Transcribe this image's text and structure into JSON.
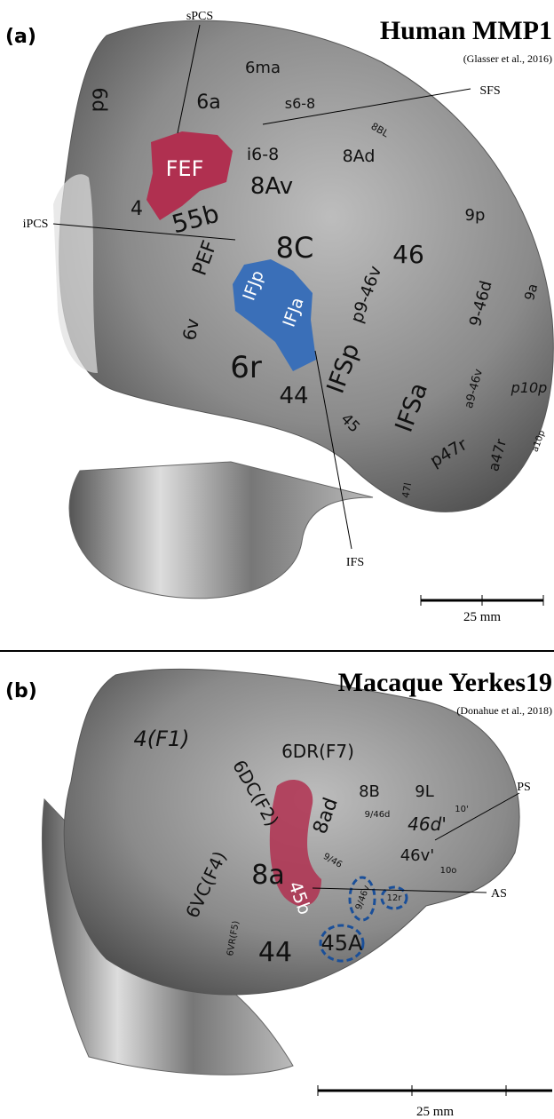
{
  "panels": [
    {
      "label": "(a)",
      "title": "Human MMP1",
      "citation": "(Glasser et al., 2016)",
      "annotations": [
        "sPCS",
        "SFS",
        "iPCS",
        "IFS"
      ],
      "regions": [
        "6d",
        "6ma",
        "6a",
        "s6-8",
        "8BL",
        "FEF",
        "i6-8",
        "8Ad",
        "8Av",
        "4",
        "55b",
        "9p",
        "8C",
        "PEF",
        "46",
        "IFJp",
        "IFJa",
        "p9-46v",
        "9-46d",
        "9a",
        "6v",
        "6r",
        "IFSp",
        "44",
        "a9-46v",
        "p10p",
        "IFSa",
        "45",
        "p47r",
        "a47r",
        "a10p",
        "47l"
      ],
      "scale_label": "25 mm"
    },
    {
      "label": "(b)",
      "title": "Macaque Yerkes19",
      "citation": "(Donahue et al., 2018)",
      "annotations": [
        "PS",
        "AS"
      ],
      "regions": [
        "4(F1)",
        "6DR(F7)",
        "6DC(F2)",
        "8B",
        "9L",
        "10'",
        "46d'",
        "9/46d",
        "8ad",
        "9/46",
        "46v'",
        "10o",
        "6VC(F4)",
        "8a",
        "45b",
        "9/46v",
        "12r",
        "6VR(F5)",
        "44",
        "45A"
      ],
      "scale_label": "25 mm"
    }
  ]
}
